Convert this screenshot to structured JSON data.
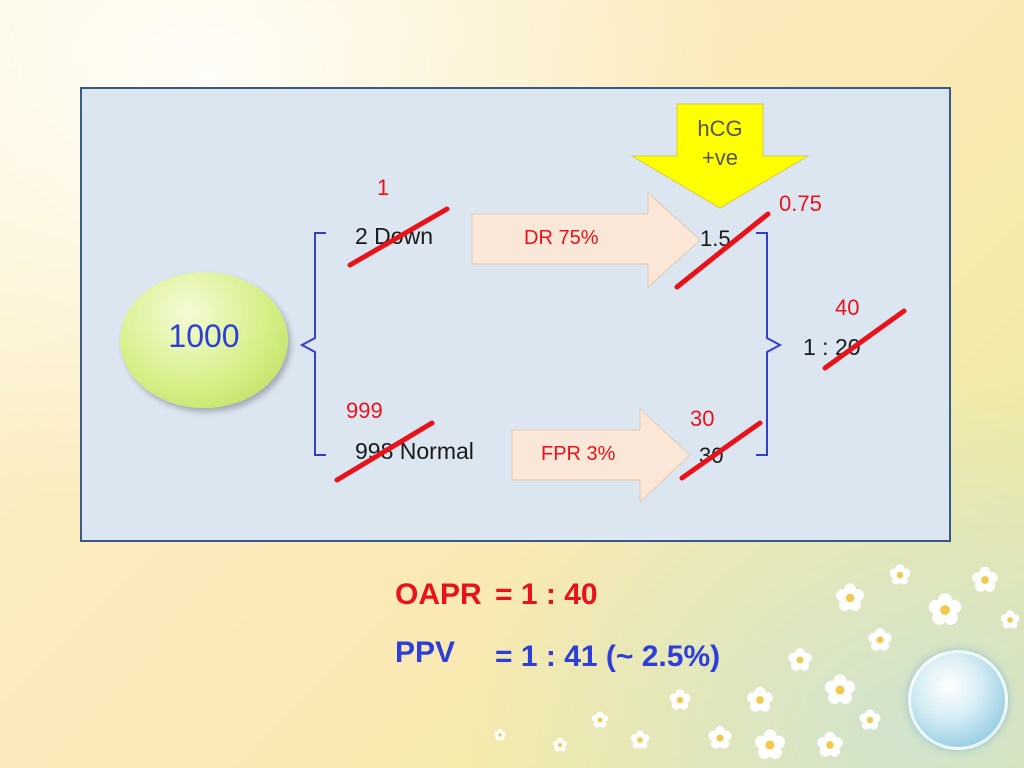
{
  "diagram": {
    "total": "1000",
    "hcg_label_line1": "hCG",
    "hcg_label_line2": "+ve",
    "down_original": "2 Down",
    "down_corrected": "1",
    "normal_original": "998 Normal",
    "normal_corrected": "999",
    "dr_label": "DR 75%",
    "fpr_label": "FPR 3%",
    "dr_result_original": "1.5",
    "dr_result_corrected": "0.75",
    "fpr_result_original": "30",
    "fpr_result_corrected": "30",
    "ratio_original": "1 : 20",
    "ratio_corrected": "40"
  },
  "summary": {
    "oapr_label": "OAPR",
    "oapr_value": "= 1 : 40",
    "ppv_label": "PPV",
    "ppv_value": "= 1 : 41 (~ 2.5%)"
  },
  "colors": {
    "panel_bg": "#dbe6f1",
    "panel_border": "#3a5a86",
    "red": "#e8121b",
    "blue": "#2d3fd6",
    "bracket": "#3340c8",
    "arrow_fill": "#fbe7d8",
    "hcg_arrow": "#ffff00"
  }
}
